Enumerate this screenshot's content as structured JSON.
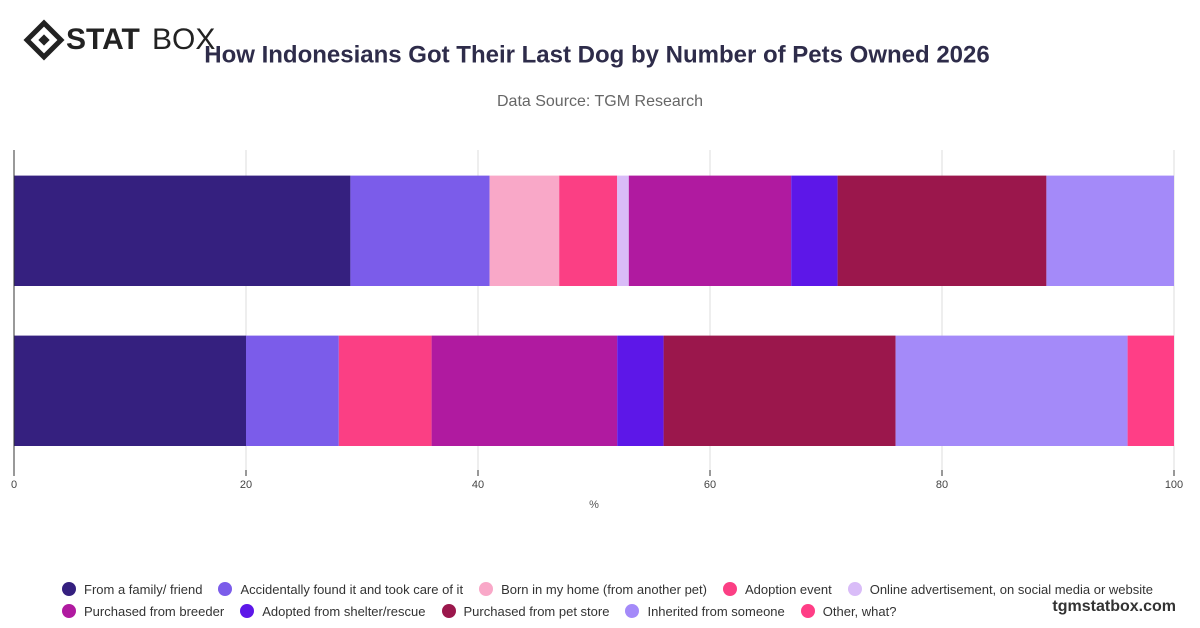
{
  "brand": {
    "bold": "STAT",
    "light": "BOX"
  },
  "footer": "tgmstatbox.com",
  "chart_data": {
    "type": "stacked-bar-horizontal",
    "title": "How Indonesians Got Their Last Dog by Number of Pets Owned 2026",
    "subtitle": "Data Source: TGM Research",
    "xlabel": "%",
    "categories": [
      null,
      null
    ],
    "xlim": [
      0,
      100
    ],
    "xticks": [
      0,
      20,
      40,
      60,
      80,
      100
    ],
    "grid": true,
    "series": [
      {
        "name": "From a family/ friend",
        "color": "#35207f",
        "values": [
          29,
          20
        ]
      },
      {
        "name": "Accidentally found it and took care of it",
        "color": "#7b5cea",
        "values": [
          12,
          8
        ]
      },
      {
        "name": "Born in my home (from another pet)",
        "color": "#f9a8c8",
        "values": [
          6,
          0
        ]
      },
      {
        "name": "Adoption event",
        "color": "#fb3f84",
        "values": [
          5,
          8
        ]
      },
      {
        "name": "Online advertisement, on social media or website",
        "color": "#d9bcf8",
        "values": [
          1,
          0
        ]
      },
      {
        "name": "Purchased from breeder",
        "color": "#b01aa0",
        "values": [
          14,
          16
        ]
      },
      {
        "name": "Adopted from shelter/rescue",
        "color": "#5d17e8",
        "values": [
          4,
          4
        ]
      },
      {
        "name": "Purchased from pet store",
        "color": "#9b174c",
        "values": [
          18,
          20
        ]
      },
      {
        "name": "Inherited from someone",
        "color": "#a48af9",
        "values": [
          11,
          20
        ]
      },
      {
        "name": "Other, what?",
        "color": "#ff3e86",
        "values": [
          0,
          4
        ]
      }
    ]
  }
}
